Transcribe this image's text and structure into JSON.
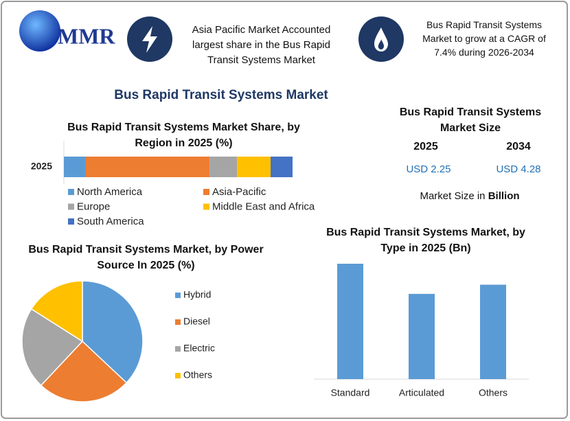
{
  "header": {
    "logo": "MMR",
    "box1": "Asia Pacific Market Accounted largest share in the Bus Rapid Transit Systems Market",
    "box2": "Bus Rapid Transit Systems Market to grow at a CAGR of 7.4% during 2026-2034"
  },
  "title": "Bus Rapid Transit Systems Market",
  "market_size": {
    "title": "Bus Rapid Transit Systems Market Size",
    "years": [
      "2025",
      "2034"
    ],
    "values": [
      "USD 2.25",
      "USD 4.28"
    ],
    "note": "Market Size in",
    "unit": "Billion"
  },
  "chart_data": [
    {
      "type": "stacked_bar",
      "title": "Bus Rapid Transit Systems Market Share, by Region in 2025 (%)",
      "categories": [
        "2025"
      ],
      "series": [
        {
          "name": "North America",
          "color": "#5b9bd5",
          "values": [
            9.6
          ]
        },
        {
          "name": "Asia-Pacific",
          "color": "#ed7d31",
          "values": [
            54.1
          ]
        },
        {
          "name": "Europe",
          "color": "#a5a5a5",
          "values": [
            12.0
          ]
        },
        {
          "name": "Middle East and Africa",
          "color": "#ffc000",
          "values": [
            14.7
          ]
        },
        {
          "name": "South America",
          "color": "#4472c4",
          "values": [
            9.6
          ]
        }
      ]
    },
    {
      "type": "pie",
      "title": "Bus Rapid Transit Systems Market, by Power Source In 2025 (%)",
      "categories": [
        "Hybrid",
        "Diesel",
        "Electric",
        "Others"
      ],
      "values": [
        37,
        25,
        22,
        16
      ],
      "colors": [
        "#5b9bd5",
        "#ed7d31",
        "#a5a5a5",
        "#ffc000"
      ]
    },
    {
      "type": "bar",
      "title": "Bus Rapid Transit Systems Market, by Type in 2025 (Bn)",
      "categories": [
        "Standard",
        "Articulated",
        "Others"
      ],
      "values": [
        0.88,
        0.65,
        0.72
      ],
      "color": "#5b9bd5"
    }
  ]
}
